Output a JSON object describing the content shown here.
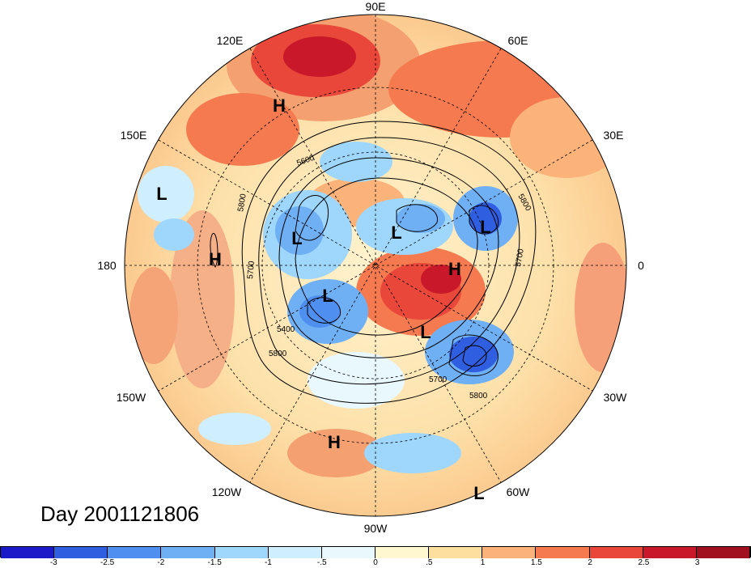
{
  "title": "Day 2001121806",
  "lon_labels": {
    "n90E": "90E",
    "n120E": "120E",
    "n60E": "60E",
    "n150E": "150E",
    "n30E": "30E",
    "n180": "180",
    "n0": "0",
    "n150W": "150W",
    "n30W": "30W",
    "n120W": "120W",
    "n60W": "60W",
    "n90W": "90W"
  },
  "centers": {
    "h1": "H",
    "h2": "H",
    "h3": "H",
    "h4": "H",
    "l1": "L",
    "l2": "L",
    "l3": "L",
    "l4": "L",
    "l5": "L",
    "l6": "L",
    "l7": "L"
  },
  "contour_labels": {
    "c1": "5800",
    "c2": "5700",
    "c3": "5800",
    "c4": "5700",
    "c5": "5400",
    "c6": "5800",
    "c7": "5700",
    "c8": "5800",
    "c9": "5600"
  },
  "colorbar": {
    "ticks": [
      "-3",
      "-2.5",
      "-2",
      "-1.5",
      "-1",
      "-.5",
      "0",
      ".5",
      "1",
      "1.5",
      "2",
      "2.5",
      "3"
    ],
    "colors": [
      "#1a1ac8",
      "#2f5fe0",
      "#4f8ff0",
      "#6fb0f5",
      "#9fd6fb",
      "#cfeefe",
      "#e8f8fd",
      "#fff7d0",
      "#fde0a0",
      "#fbb37a",
      "#f57a50",
      "#e8473a",
      "#c8182a",
      "#a0101f"
    ]
  }
}
